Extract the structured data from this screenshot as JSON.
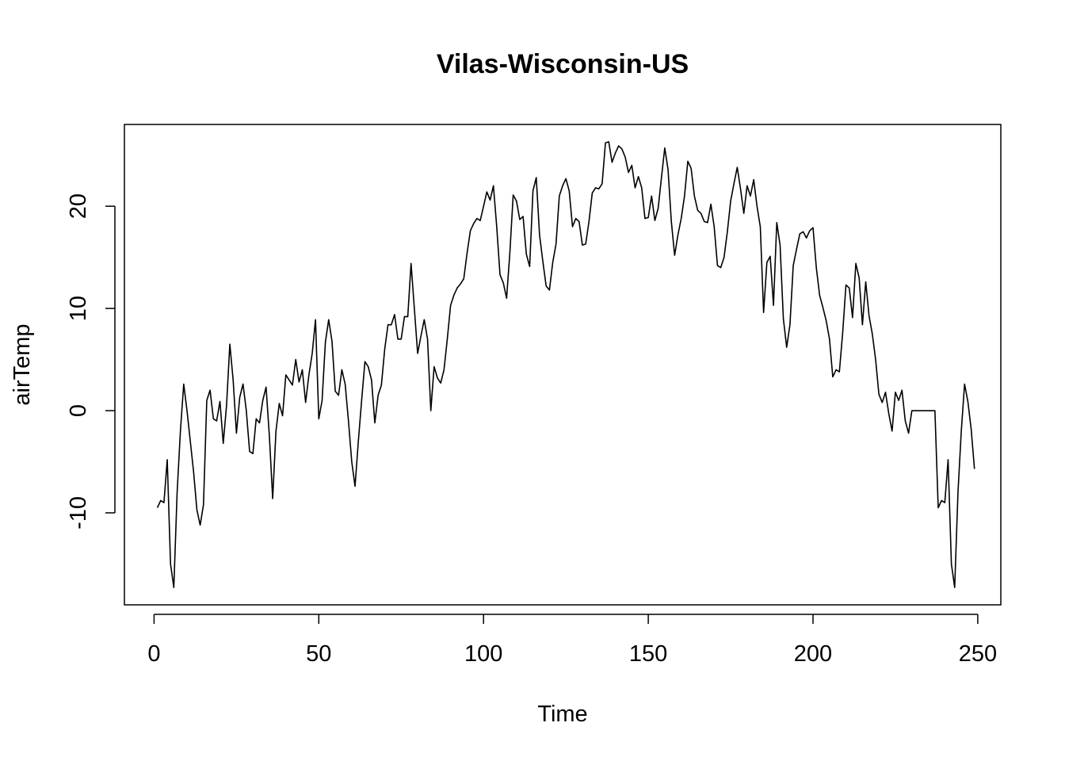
{
  "chart_data": {
    "type": "line",
    "title": "Vilas-Wisconsin-US",
    "xlabel": "Time",
    "ylabel": "airTemp",
    "xlim": [
      -9,
      257
    ],
    "ylim": [
      -19,
      28
    ],
    "xticks": [
      0,
      50,
      100,
      150,
      200,
      250
    ],
    "yticks": [
      -10,
      0,
      10,
      20
    ],
    "line_color": "#000000",
    "series": [
      {
        "name": "airTemp",
        "x_start": 1,
        "x_step": 1,
        "values": [
          -9.5,
          -8.8,
          -9.0,
          -4.8,
          -15.0,
          -17.3,
          -8.0,
          -2.0,
          2.6,
          0.0,
          -3.0,
          -6.0,
          -9.7,
          -11.2,
          -9.2,
          1.0,
          2.0,
          -0.8,
          -1.0,
          0.9,
          -3.2,
          0.5,
          6.5,
          3.0,
          -2.2,
          1.3,
          2.6,
          0.0,
          -4.0,
          -4.2,
          -0.8,
          -1.2,
          1.0,
          2.3,
          -2.5,
          -8.6,
          -2.0,
          0.7,
          -0.5,
          3.5,
          3.0,
          2.5,
          5.0,
          2.8,
          4.0,
          0.8,
          3.5,
          5.6,
          8.9,
          -0.8,
          1.0,
          6.7,
          8.9,
          6.8,
          1.9,
          1.5,
          4.0,
          2.6,
          -1.0,
          -5.0,
          -7.4,
          -3.0,
          1.0,
          4.8,
          4.3,
          3.0,
          -1.2,
          1.5,
          2.5,
          6.0,
          8.4,
          8.4,
          9.4,
          7.0,
          7.0,
          9.2,
          9.2,
          14.4,
          10.0,
          5.6,
          7.3,
          8.9,
          7.0,
          0.0,
          4.3,
          3.2,
          2.7,
          4.0,
          7.0,
          10.3,
          11.3,
          12.0,
          12.4,
          12.9,
          15.4,
          17.6,
          18.3,
          18.8,
          18.6,
          20.0,
          21.4,
          20.6,
          22.0,
          18.0,
          13.3,
          12.5,
          11.0,
          15.5,
          21.1,
          20.5,
          18.7,
          19.0,
          15.3,
          14.1,
          21.5,
          22.8,
          17.2,
          14.6,
          12.2,
          11.8,
          14.5,
          16.3,
          21.0,
          22.0,
          22.7,
          21.5,
          18.0,
          18.8,
          18.5,
          16.2,
          16.3,
          18.5,
          21.3,
          21.8,
          21.7,
          22.2,
          26.2,
          26.3,
          24.3,
          25.2,
          25.9,
          25.6,
          24.8,
          23.3,
          24.0,
          21.8,
          22.9,
          21.8,
          18.8,
          18.9,
          21.0,
          18.6,
          19.8,
          22.8,
          25.7,
          23.6,
          18.5,
          15.2,
          17.2,
          18.8,
          21.0,
          24.4,
          23.7,
          21.0,
          19.6,
          19.3,
          18.5,
          18.4,
          20.2,
          18.0,
          14.2,
          14.0,
          15.0,
          17.5,
          20.5,
          22.2,
          23.8,
          21.7,
          19.3,
          22.0,
          21.0,
          22.6,
          20.0,
          18.0,
          9.6,
          14.5,
          15.1,
          10.3,
          18.4,
          16.2,
          9.0,
          6.2,
          8.4,
          14.2,
          15.8,
          17.3,
          17.5,
          16.9,
          17.6,
          17.9,
          14.0,
          11.3,
          10.1,
          8.8,
          7.0,
          3.3,
          4.0,
          3.8,
          7.6,
          12.3,
          12.0,
          9.1,
          14.4,
          13.0,
          8.4,
          12.6,
          9.3,
          7.5,
          5.0,
          1.6,
          0.8,
          1.8,
          -0.3,
          -2.0,
          1.8,
          1.0,
          2.0,
          -1.0,
          -2.2,
          0.0,
          0.0,
          0.0,
          0.0,
          0.0,
          0.0,
          0.0,
          0.0,
          -9.5,
          -8.8,
          -9.0,
          -4.8,
          -15.0,
          -17.3,
          -8.0,
          -2.0,
          2.6,
          0.9,
          -1.8,
          -5.7
        ]
      }
    ]
  }
}
